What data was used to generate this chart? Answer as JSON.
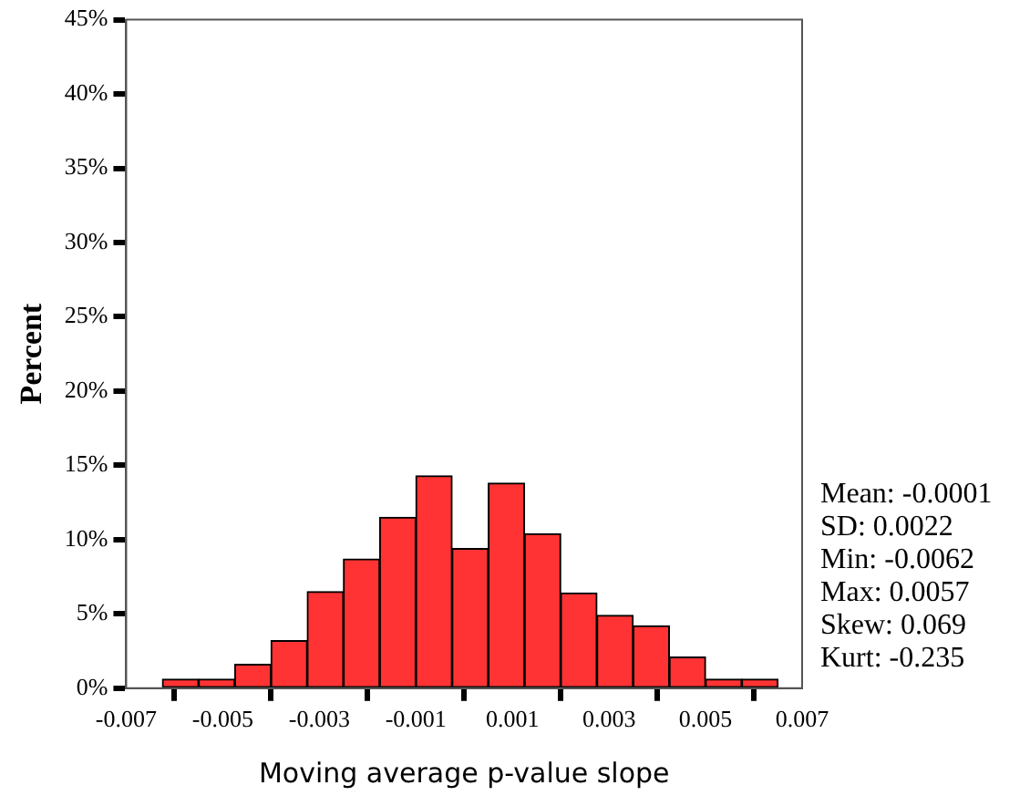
{
  "chart_data": {
    "type": "histogram",
    "xlabel": "Moving average p-value slope",
    "ylabel": "Percent",
    "bins": [
      -0.00625,
      -0.0055,
      -0.00475,
      -0.004,
      -0.00325,
      -0.0025,
      -0.00175,
      -0.001,
      -0.00025,
      0.0005,
      0.00125,
      0.002,
      0.00275,
      0.0035,
      0.00425,
      0.005,
      0.00575,
      0.0065
    ],
    "values": [
      0.6,
      0.6,
      1.6,
      3.2,
      6.5,
      8.7,
      11.5,
      14.3,
      9.4,
      13.8,
      10.4,
      6.4,
      4.9,
      4.2,
      2.1,
      0.6,
      0.6
    ],
    "color": "#ff3333",
    "xlim": [
      -0.007,
      0.007
    ],
    "xticks": [
      -0.007,
      -0.005,
      -0.003,
      -0.001,
      0.001,
      0.003,
      0.005,
      0.007
    ],
    "ylim": [
      0,
      45
    ],
    "yticks": [
      {
        "value": 0,
        "label": "0%"
      },
      {
        "value": 5,
        "label": "5%"
      },
      {
        "value": 10,
        "label": "10%"
      },
      {
        "value": 15,
        "label": "15%"
      },
      {
        "value": 20,
        "label": "20%"
      },
      {
        "value": 25,
        "label": "25%"
      },
      {
        "value": 30,
        "label": "30%"
      },
      {
        "value": 35,
        "label": "35%"
      },
      {
        "value": 40,
        "label": "40%"
      },
      {
        "value": 45,
        "label": "45%"
      }
    ],
    "grid": false,
    "legend": false,
    "annotations": [
      "Mean: -0.0001",
      "SD: 0.0022",
      "Min: -0.0062",
      "Max: 0.0057",
      "Skew: 0.069",
      "Kurt: -0.235"
    ]
  }
}
